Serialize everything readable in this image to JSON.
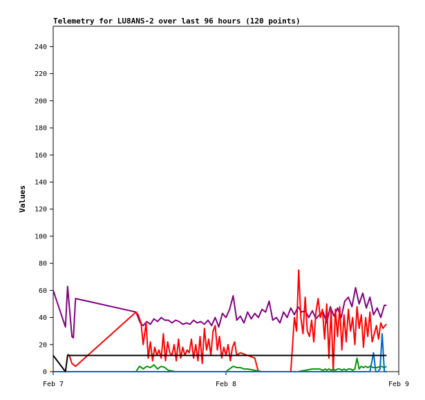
{
  "chart_data": {
    "type": "line",
    "title": "Telemetry for LU8ANS-2 over last 96 hours (120 points)",
    "xlabel": "",
    "ylabel": "Values",
    "x_ticks": [
      "Feb 7",
      "Feb 8",
      "Feb 9"
    ],
    "x_range_hours": [
      0,
      48
    ],
    "ylim": [
      0,
      255
    ],
    "y_ticks": [
      0,
      20,
      40,
      60,
      80,
      100,
      120,
      140,
      160,
      180,
      200,
      220,
      240
    ],
    "grid": false,
    "legend": "none",
    "series": [
      {
        "color": "#800080",
        "x": [
          0,
          1.7,
          2.0,
          2.6,
          2.8,
          3.1,
          11.5,
          12.1,
          12.5,
          13.0,
          13.5,
          14.0,
          14.5,
          15.0,
          15.5,
          16.0,
          16.5,
          17.0,
          17.5,
          18.0,
          18.5,
          19.0,
          19.5,
          20.0,
          20.5,
          21.0,
          21.5,
          22.0,
          22.5,
          23.0,
          23.5,
          24.0,
          24.5,
          25.0,
          25.5,
          26.0,
          26.5,
          27.0,
          27.5,
          28.0,
          28.5,
          29.0,
          29.5,
          30.0,
          30.5,
          31.0,
          31.5,
          32.0,
          32.5,
          33.0,
          33.5,
          34.0,
          34.5,
          35.0,
          35.5,
          36.0,
          36.5,
          37.0,
          37.5,
          38.0,
          38.5,
          39.0,
          39.5,
          40.0,
          40.5,
          41.0,
          41.5,
          42.0,
          42.5,
          43.0,
          43.5,
          44.0,
          44.5,
          45.0,
          45.5,
          46.0,
          46.3
        ],
        "values": [
          60,
          33,
          63,
          26,
          25,
          54,
          44,
          36,
          34,
          37,
          35,
          39,
          37,
          40,
          38,
          38,
          36,
          38,
          37,
          35,
          36,
          35,
          38,
          36,
          37,
          35,
          38,
          34,
          40,
          33,
          43,
          40,
          46,
          56,
          38,
          41,
          36,
          44,
          39,
          43,
          40,
          46,
          44,
          52,
          38,
          40,
          36,
          44,
          40,
          47,
          42,
          48,
          44,
          45,
          40,
          45,
          39,
          42,
          44,
          36,
          48,
          41,
          47,
          40,
          52,
          55,
          48,
          62,
          50,
          58,
          47,
          55,
          42,
          47,
          40,
          49,
          49
        ]
      },
      {
        "color": "#ff0000",
        "x": [
          2.0,
          2.3,
          2.6,
          3.1,
          11.5,
          11.8,
          12.2,
          12.5,
          12.9,
          13.2,
          13.5,
          13.8,
          14.1,
          14.4,
          14.7,
          15.0,
          15.3,
          15.6,
          15.9,
          16.2,
          16.5,
          16.8,
          17.1,
          17.4,
          17.7,
          18.0,
          18.3,
          18.6,
          18.9,
          19.2,
          19.5,
          19.8,
          20.1,
          20.4,
          20.7,
          21.0,
          21.3,
          21.6,
          21.9,
          22.2,
          22.5,
          22.8,
          23.1,
          23.4,
          23.7,
          24.0,
          24.3,
          24.6,
          24.9,
          25.2,
          25.5,
          26.0,
          27.0,
          28.0,
          28.5,
          29.0,
          29.5,
          30.0,
          30.5,
          31.0,
          32.0,
          33.0,
          33.5,
          33.8,
          34.1,
          34.4,
          34.7,
          35.0,
          35.3,
          35.6,
          35.9,
          36.2,
          36.5,
          36.8,
          37.1,
          37.4,
          37.7,
          38.0,
          38.3,
          38.6,
          38.9,
          39.2,
          39.5,
          39.8,
          40.1,
          40.4,
          40.7,
          41.0,
          41.3,
          41.6,
          41.9,
          42.2,
          42.5,
          42.8,
          43.1,
          43.4,
          43.7,
          44.0,
          44.3,
          44.6,
          44.9,
          45.2,
          45.5,
          45.8,
          46.1,
          46.3
        ],
        "values": [
          13,
          11,
          6,
          4,
          44,
          42,
          36,
          20,
          36,
          10,
          22,
          8,
          18,
          12,
          16,
          10,
          28,
          8,
          22,
          14,
          12,
          20,
          8,
          24,
          10,
          18,
          12,
          16,
          14,
          24,
          10,
          20,
          8,
          26,
          6,
          32,
          16,
          24,
          12,
          30,
          34,
          16,
          26,
          10,
          18,
          12,
          20,
          8,
          18,
          22,
          12,
          14,
          12,
          10,
          0,
          0,
          0,
          0,
          0,
          0,
          0,
          0,
          40,
          30,
          75,
          40,
          28,
          55,
          30,
          26,
          38,
          22,
          44,
          54,
          40,
          46,
          24,
          50,
          10,
          46,
          0,
          46,
          26,
          48,
          16,
          42,
          22,
          46,
          30,
          40,
          20,
          48,
          32,
          42,
          18,
          40,
          26,
          44,
          22,
          28,
          34,
          24,
          36,
          32,
          34,
          35
        ]
      },
      {
        "color": "#009900",
        "x": [
          0,
          4,
          8,
          11.5,
          12.0,
          12.5,
          13.0,
          13.5,
          14.0,
          14.5,
          15.0,
          15.5,
          16.0,
          17.0,
          18.0,
          19.0,
          20.0,
          21.0,
          22.0,
          23.0,
          24.0,
          24.5,
          25.0,
          25.5,
          26.0,
          26.5,
          27.0,
          28.0,
          29.0,
          30.0,
          31.0,
          32.0,
          33.0,
          34.0,
          35.0,
          36.0,
          37.0,
          37.5,
          37.8,
          38.0,
          38.3,
          38.6,
          38.9,
          39.2,
          39.5,
          39.8,
          40.1,
          40.4,
          40.7,
          41.0,
          41.3,
          41.6,
          41.9,
          42.2,
          42.5,
          42.8,
          43.1,
          43.4,
          43.7,
          44.0,
          44.5,
          45.0,
          45.5,
          46.0,
          46.3
        ],
        "values": [
          0,
          0,
          0,
          0,
          4,
          2,
          4,
          3,
          5,
          2,
          4,
          3,
          1,
          0,
          0,
          0,
          0,
          0,
          0,
          0,
          0,
          2,
          4,
          3,
          3,
          2,
          2,
          1,
          0,
          0,
          0,
          0,
          0,
          0,
          1,
          2,
          2,
          1,
          2,
          1,
          2,
          1,
          2,
          1,
          2,
          2,
          1,
          2,
          1,
          2,
          2,
          1,
          2,
          10,
          2,
          4,
          3,
          4,
          3,
          4,
          3,
          3,
          4,
          3,
          4
        ]
      },
      {
        "color": "#0066cc",
        "x": [
          0,
          10,
          20,
          30,
          35,
          36,
          37,
          37.5,
          37.8,
          38.0,
          38.3,
          38.6,
          39.0,
          40.0,
          40.3,
          40.6,
          40.9,
          41.2,
          41.5,
          42.0,
          43.0,
          44.0,
          44.5,
          44.8,
          45.1,
          45.4,
          45.7,
          46.0,
          46.3
        ],
        "values": [
          0,
          0,
          0,
          0,
          0,
          0,
          0,
          0,
          0,
          0,
          0,
          0,
          0,
          0,
          0,
          0,
          0,
          0,
          0,
          0,
          0,
          0,
          14,
          0,
          0,
          2,
          28,
          0,
          0
        ]
      },
      {
        "color": "#000000",
        "x": [
          0,
          1.7,
          2.0,
          10,
          20,
          30,
          40,
          46.3
        ],
        "values": [
          12,
          0,
          12,
          12,
          12,
          12,
          12,
          12
        ]
      }
    ]
  }
}
